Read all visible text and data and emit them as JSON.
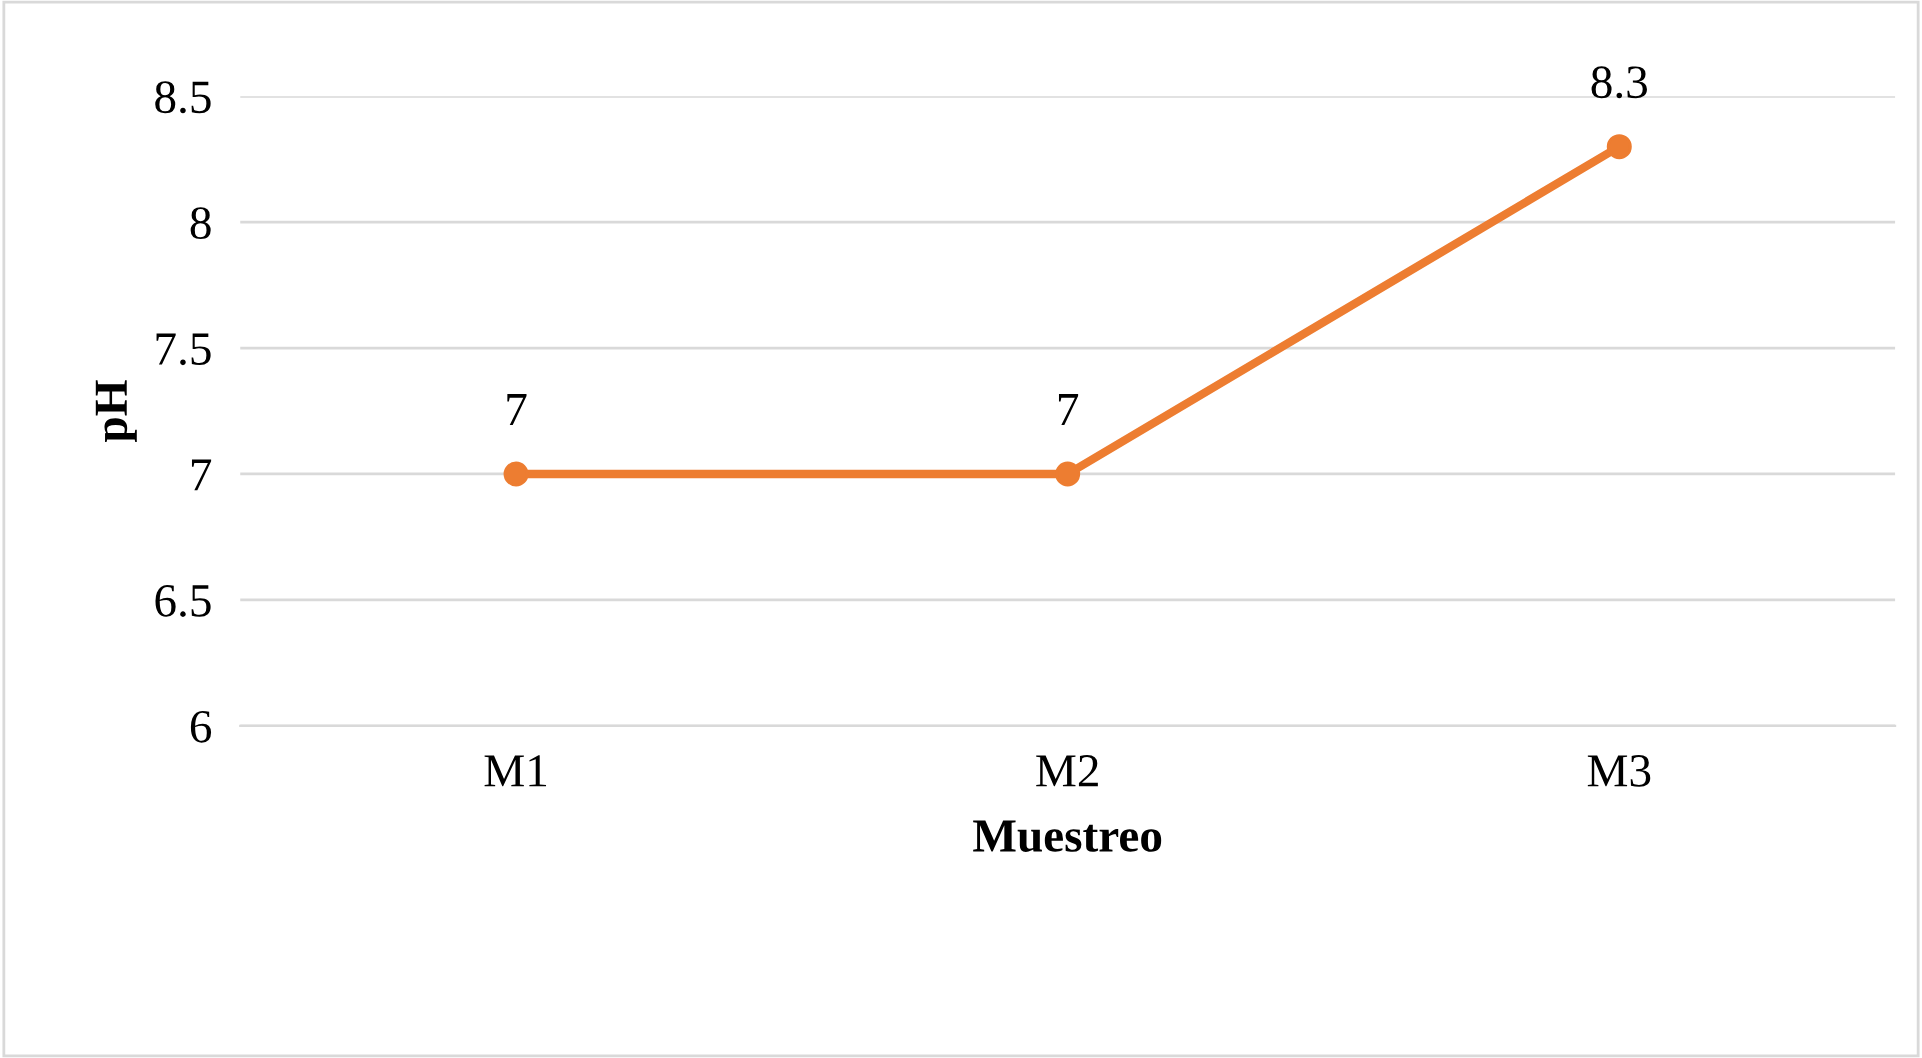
{
  "chart_data": {
    "type": "line",
    "xlabel": "Muestreo",
    "ylabel": "pH",
    "categories": [
      "M1",
      "M2",
      "M3"
    ],
    "series": [
      {
        "color": "#ed7d31",
        "values": [
          7,
          7,
          8.3
        ]
      }
    ],
    "ylim": [
      6,
      8.5
    ],
    "yticks": [
      6,
      6.5,
      7,
      7.5,
      8,
      8.5
    ],
    "grid": "y",
    "marker": "circle",
    "line_style": "solid",
    "data_labels": true,
    "legend": false
  }
}
